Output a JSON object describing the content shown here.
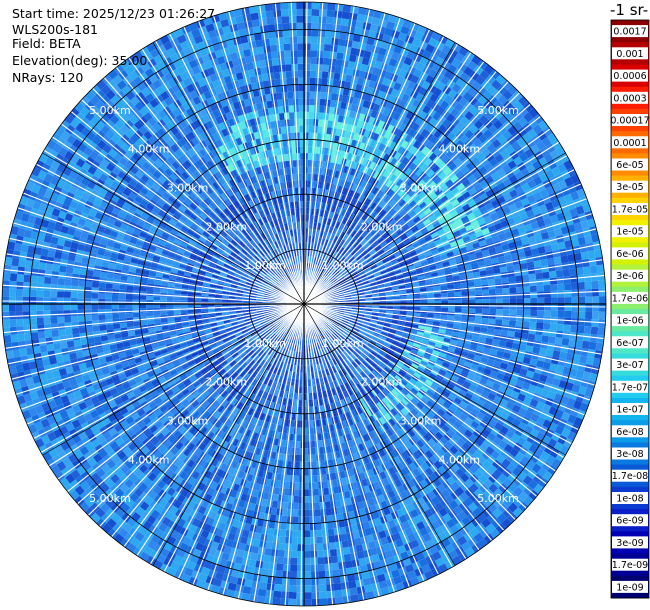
{
  "header": {
    "start_time": "Start time: 2025/12/23 01:26:27",
    "instrument": "WLS200s-181",
    "field": "Field: BETA",
    "elevation": "Elevation(deg): 35.00",
    "nrays": "NRays: 120"
  },
  "colorbar": {
    "title": "-1 sr-",
    "labels": [
      "0.0017",
      "0.001",
      "0.0006",
      "0.0003",
      "0.00017",
      "0.0001",
      "6e-05",
      "3e-05",
      "1.7e-05",
      "1e-05",
      "6e-06",
      "3e-06",
      "1.7e-06",
      "1e-06",
      "6e-07",
      "3e-07",
      "1.7e-07",
      "1e-07",
      "6e-08",
      "3e-08",
      "1.7e-08",
      "1e-08",
      "6e-09",
      "3e-09",
      "1.7e-09",
      "1e-09"
    ],
    "colors": [
      "#8b0000",
      "#b40000",
      "#d80000",
      "#ff1a00",
      "#ff4000",
      "#ff6a00",
      "#ff8c00",
      "#ffb000",
      "#ffd400",
      "#f2f200",
      "#d4f200",
      "#b0f23c",
      "#8cf06e",
      "#6aeaa0",
      "#4ee8c8",
      "#36dcdc",
      "#22ccee",
      "#12b4f0",
      "#0a9ce8",
      "#0a7ae0",
      "#0a5ad8",
      "#0a3ad0",
      "#0a1ec8",
      "#0000b4",
      "#000094",
      "#000070"
    ]
  },
  "chart_data": {
    "type": "heatmap",
    "projection": "polar (PPI scan)",
    "field": "BETA",
    "elevation_deg": 35.0,
    "nrays": 120,
    "range_ring_labels": [
      "1.00km",
      "2.00km",
      "3.00km",
      "4.00km",
      "5.00km"
    ],
    "range_rings_km": [
      1,
      2,
      3,
      4,
      5
    ],
    "max_range_km": 5.5,
    "colorscale": "log",
    "dominant_values": "mostly 1e-08 to 1e-07 (blue), arc of 1e-07 to 3e-07 (cyan) near 2.8-3.5 km north-east",
    "grid": true
  }
}
